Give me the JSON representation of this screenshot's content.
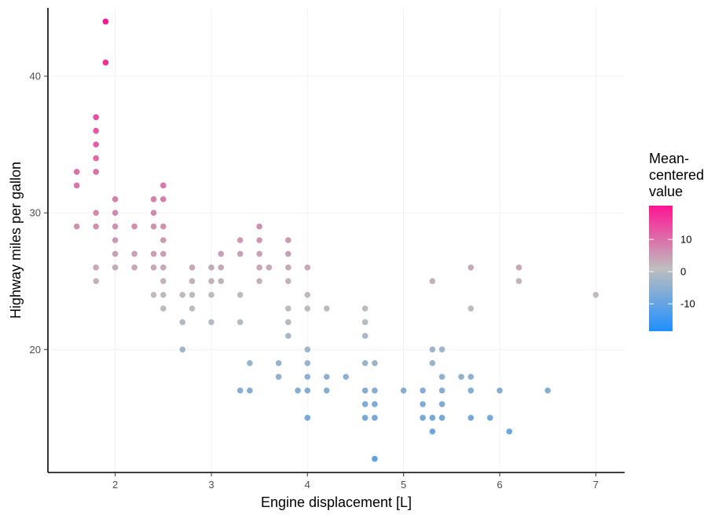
{
  "chart_data": {
    "type": "scatter",
    "title": "",
    "xlabel": "Engine displacement [L]",
    "ylabel": "Highway miles per gallon",
    "xlim": [
      1.3,
      7.3
    ],
    "ylim": [
      11,
      45
    ],
    "x_ticks": [
      2,
      3,
      4,
      5,
      6,
      7
    ],
    "y_ticks": [
      20,
      30,
      40
    ],
    "grid": true,
    "legend": {
      "title": [
        "Mean-",
        "centered",
        "value"
      ],
      "position": "right",
      "type": "colorbar",
      "range": [
        -18.5,
        20.5
      ],
      "ticks": [
        10,
        0,
        -10
      ],
      "colors": {
        "low": "#1e90ff",
        "mid": "#bebebe",
        "high": "#ff1493"
      }
    },
    "mean_y": 23.44,
    "points": [
      [
        1.6,
        33
      ],
      [
        1.6,
        32
      ],
      [
        1.6,
        29
      ],
      [
        1.8,
        37
      ],
      [
        1.8,
        36
      ],
      [
        1.8,
        35
      ],
      [
        1.8,
        34
      ],
      [
        1.8,
        33
      ],
      [
        1.8,
        30
      ],
      [
        1.8,
        29
      ],
      [
        1.8,
        26
      ],
      [
        1.8,
        25
      ],
      [
        1.9,
        44
      ],
      [
        1.9,
        41
      ],
      [
        2.0,
        31
      ],
      [
        2.0,
        30
      ],
      [
        2.0,
        29
      ],
      [
        2.0,
        28
      ],
      [
        2.0,
        27
      ],
      [
        2.0,
        26
      ],
      [
        2.2,
        29
      ],
      [
        2.2,
        27
      ],
      [
        2.2,
        26
      ],
      [
        2.4,
        31
      ],
      [
        2.4,
        30
      ],
      [
        2.4,
        29
      ],
      [
        2.4,
        27
      ],
      [
        2.4,
        26
      ],
      [
        2.4,
        24
      ],
      [
        2.5,
        32
      ],
      [
        2.5,
        31
      ],
      [
        2.5,
        29
      ],
      [
        2.5,
        28
      ],
      [
        2.5,
        27
      ],
      [
        2.5,
        26
      ],
      [
        2.5,
        25
      ],
      [
        2.5,
        24
      ],
      [
        2.5,
        23
      ],
      [
        2.7,
        24
      ],
      [
        2.7,
        22
      ],
      [
        2.7,
        20
      ],
      [
        2.8,
        26
      ],
      [
        2.8,
        25
      ],
      [
        2.8,
        24
      ],
      [
        2.8,
        23
      ],
      [
        3.0,
        26
      ],
      [
        3.0,
        25
      ],
      [
        3.0,
        24
      ],
      [
        3.0,
        22
      ],
      [
        3.1,
        27
      ],
      [
        3.1,
        26
      ],
      [
        3.1,
        25
      ],
      [
        3.3,
        28
      ],
      [
        3.3,
        27
      ],
      [
        3.3,
        24
      ],
      [
        3.3,
        22
      ],
      [
        3.3,
        17
      ],
      [
        3.4,
        19
      ],
      [
        3.4,
        17
      ],
      [
        3.5,
        29
      ],
      [
        3.5,
        28
      ],
      [
        3.5,
        27
      ],
      [
        3.5,
        26
      ],
      [
        3.5,
        25
      ],
      [
        3.6,
        26
      ],
      [
        3.7,
        19
      ],
      [
        3.7,
        18
      ],
      [
        3.8,
        28
      ],
      [
        3.8,
        27
      ],
      [
        3.8,
        26
      ],
      [
        3.8,
        25
      ],
      [
        3.8,
        23
      ],
      [
        3.8,
        22
      ],
      [
        3.8,
        21
      ],
      [
        3.9,
        17
      ],
      [
        4.0,
        26
      ],
      [
        4.0,
        24
      ],
      [
        4.0,
        23
      ],
      [
        4.0,
        20
      ],
      [
        4.0,
        19
      ],
      [
        4.0,
        18
      ],
      [
        4.0,
        17
      ],
      [
        4.0,
        15
      ],
      [
        4.2,
        23
      ],
      [
        4.2,
        18
      ],
      [
        4.2,
        17
      ],
      [
        4.4,
        18
      ],
      [
        4.6,
        23
      ],
      [
        4.6,
        22
      ],
      [
        4.6,
        21
      ],
      [
        4.6,
        19
      ],
      [
        4.6,
        17
      ],
      [
        4.6,
        16
      ],
      [
        4.6,
        15
      ],
      [
        4.7,
        19
      ],
      [
        4.7,
        17
      ],
      [
        4.7,
        16
      ],
      [
        4.7,
        15
      ],
      [
        4.7,
        12
      ],
      [
        5.0,
        17
      ],
      [
        5.2,
        17
      ],
      [
        5.2,
        16
      ],
      [
        5.2,
        15
      ],
      [
        5.3,
        25
      ],
      [
        5.3,
        20
      ],
      [
        5.3,
        19
      ],
      [
        5.3,
        15
      ],
      [
        5.3,
        14
      ],
      [
        5.4,
        20
      ],
      [
        5.4,
        18
      ],
      [
        5.4,
        17
      ],
      [
        5.4,
        16
      ],
      [
        5.4,
        15
      ],
      [
        5.6,
        18
      ],
      [
        5.7,
        26
      ],
      [
        5.7,
        23
      ],
      [
        5.7,
        18
      ],
      [
        5.7,
        17
      ],
      [
        5.7,
        15
      ],
      [
        5.9,
        15
      ],
      [
        6.0,
        17
      ],
      [
        6.1,
        14
      ],
      [
        6.2,
        26
      ],
      [
        6.2,
        25
      ],
      [
        6.5,
        17
      ],
      [
        7.0,
        24
      ]
    ]
  }
}
